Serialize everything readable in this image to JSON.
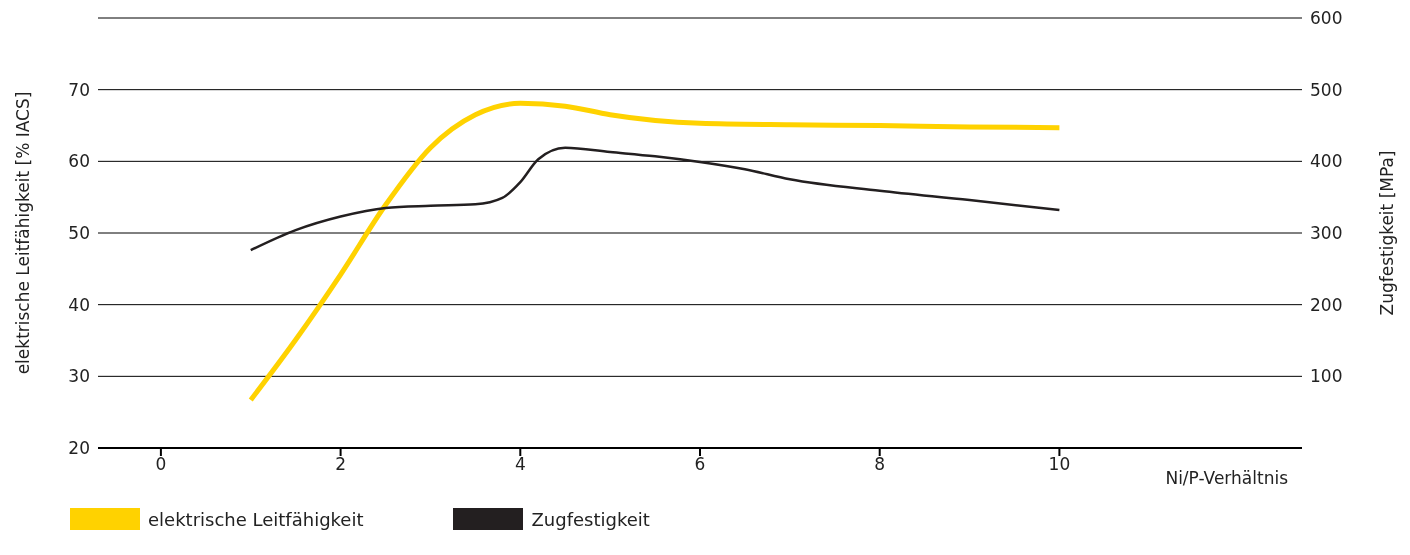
{
  "chart_data": {
    "type": "line",
    "xlabel": "Ni/P-Verhältnis",
    "ylabel": "elektrische Leitfähigkeit [% IACS]",
    "y2label": "Zugfestigkeit [MPa]",
    "xlim": [
      -0.7,
      12.7
    ],
    "xticks": [
      0,
      2,
      4,
      6,
      8,
      10
    ],
    "ylim": [
      20,
      80
    ],
    "yticks": [
      20,
      30,
      40,
      50,
      60,
      70,
      {
        "value": 80,
        "label": null
      }
    ],
    "y2lim": [
      0,
      600
    ],
    "y2ticks": [
      100,
      200,
      300,
      400,
      500,
      600
    ],
    "grid": "y",
    "legend": "bottom left",
    "marker": "none",
    "line_style": "solid",
    "series": [
      {
        "name": "elektrische Leitfähigkeit",
        "color": "#ffd200",
        "x": [
          1,
          1.5,
          2,
          2.5,
          3,
          3.5,
          4,
          4.5,
          5,
          6,
          7,
          8,
          9,
          10
        ],
        "values": [
          26.7,
          35.1,
          44.2,
          53.9,
          61.9,
          66.5,
          68.1,
          67.7,
          66.5,
          65.3,
          65.1,
          65.0,
          64.8,
          64.7
        ]
      },
      {
        "name": "Zugfestigkeit",
        "color": "#231f20",
        "axis": "y2",
        "x": [
          1,
          1.5,
          2,
          2.5,
          3,
          3.5,
          3.8,
          4,
          4.2,
          4.5,
          5,
          5.5,
          6,
          6.5,
          7,
          8,
          9,
          10
        ],
        "values": [
          276,
          304,
          323,
          335,
          338,
          340,
          349,
          371,
          403,
          419,
          413,
          407,
          399,
          389,
          375,
          359,
          346,
          332
        ]
      }
    ]
  }
}
